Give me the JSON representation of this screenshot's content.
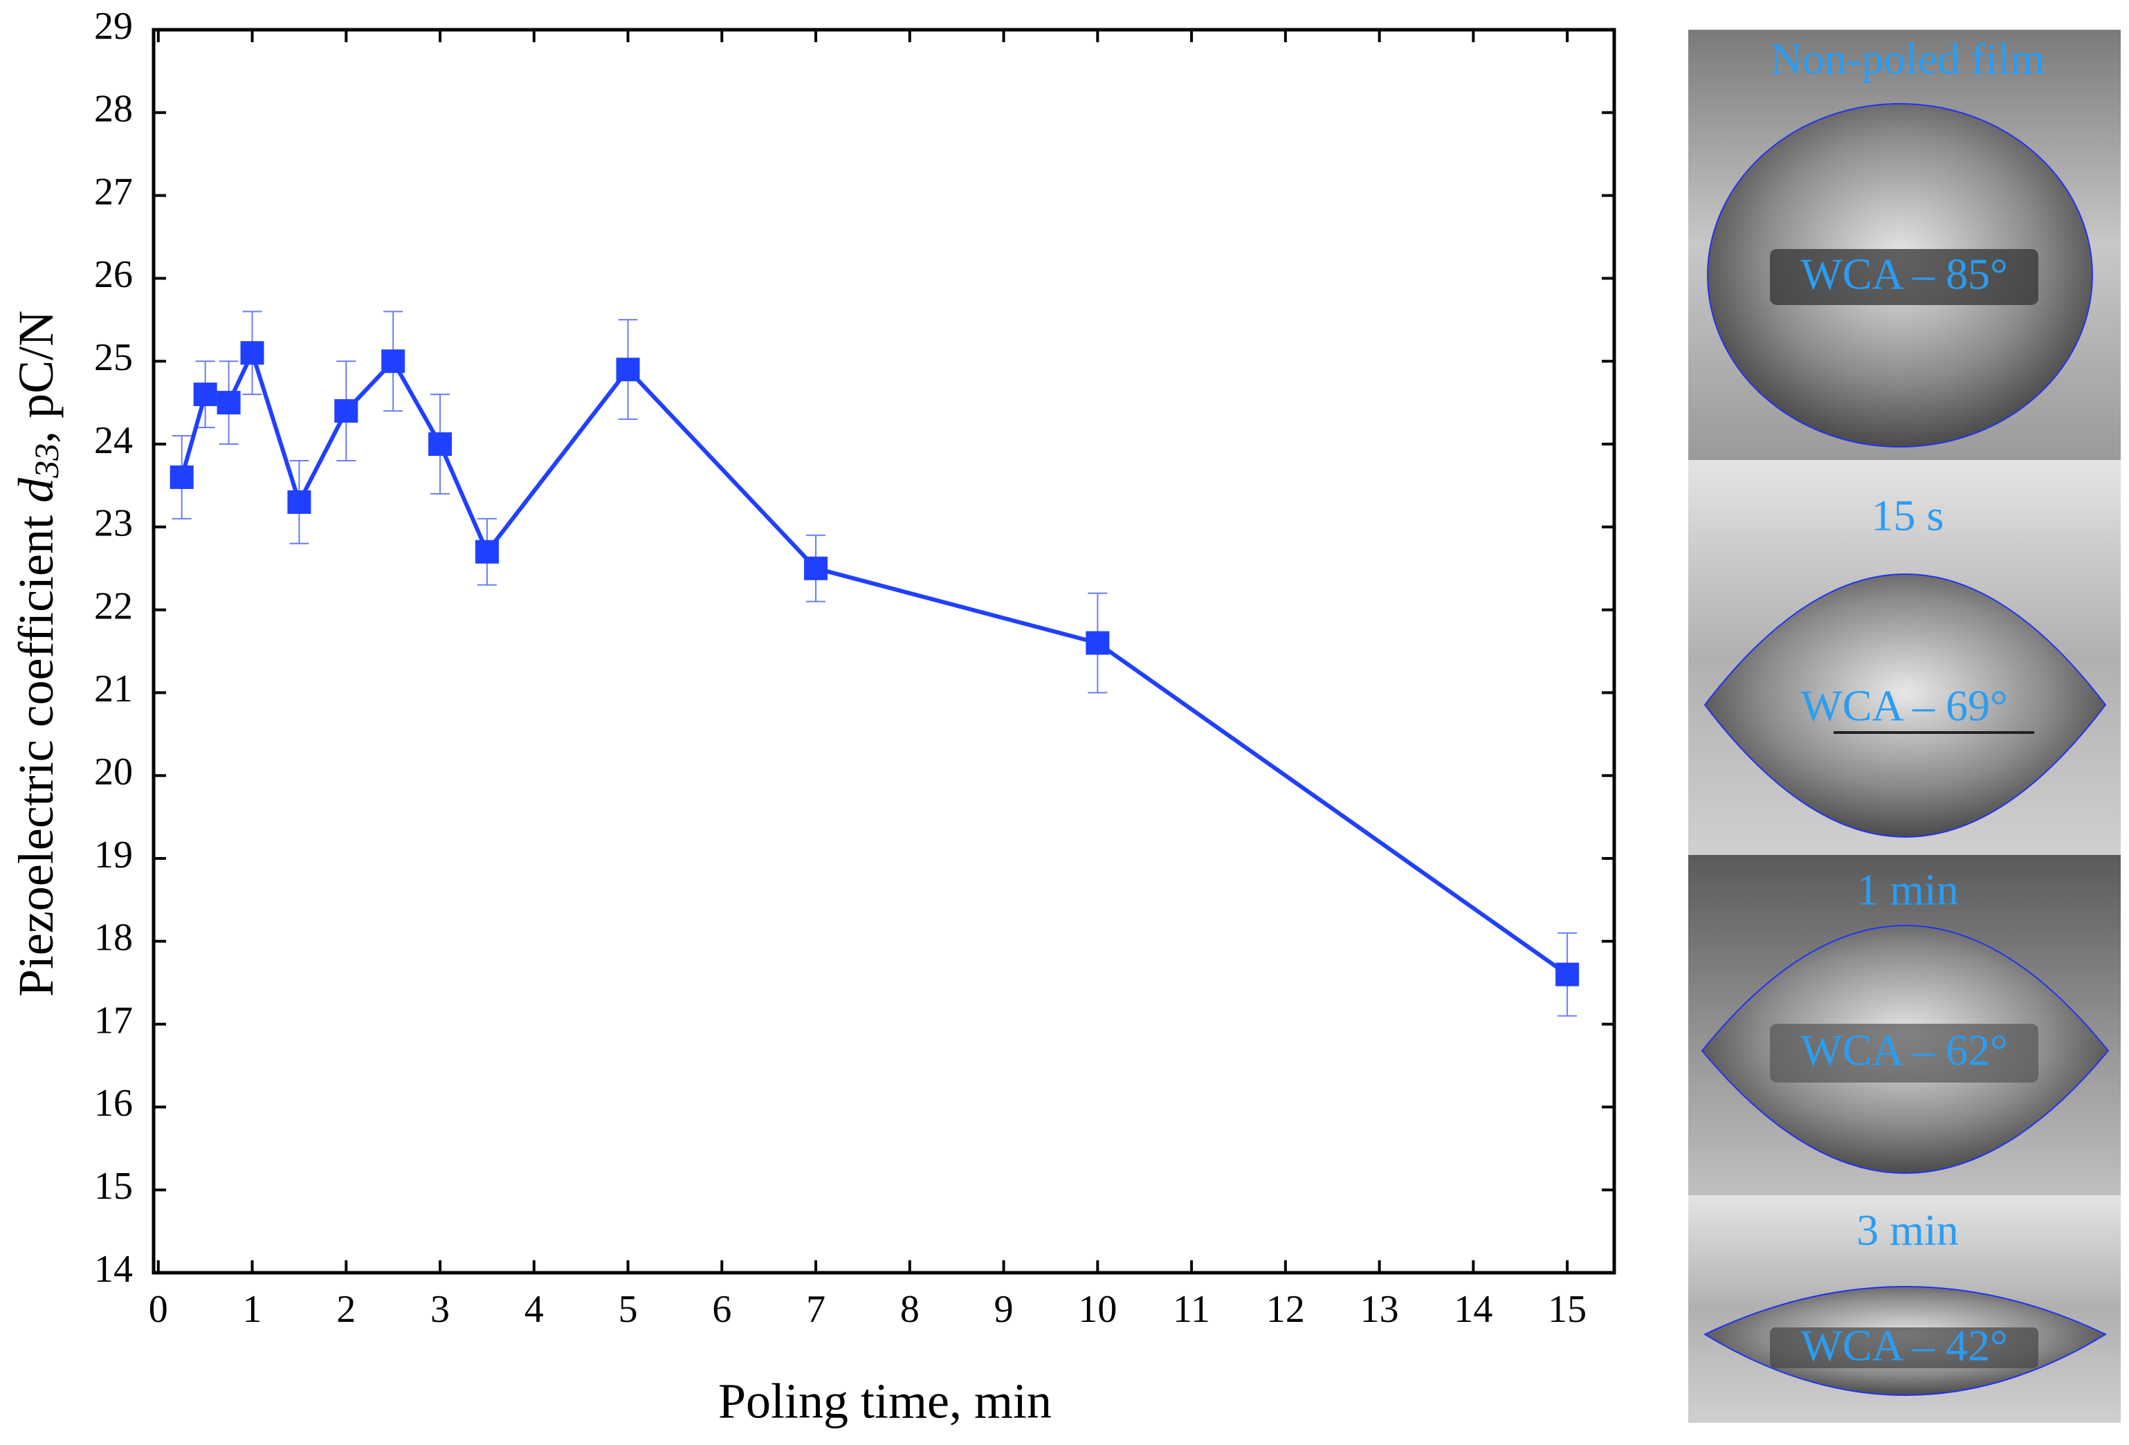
{
  "chart_data": {
    "type": "line",
    "x_label": "Poling time, min",
    "y_label": [
      "Piezoelectric coefficient ",
      "d",
      "33",
      ", pC/N"
    ],
    "x": [
      0.25,
      0.5,
      0.75,
      1,
      1.5,
      2,
      2.5,
      3,
      3.5,
      5,
      7,
      10,
      15
    ],
    "values": [
      23.6,
      24.6,
      24.5,
      25.1,
      23.3,
      24.4,
      25.0,
      24.0,
      22.7,
      24.9,
      22.5,
      21.6,
      17.6
    ],
    "errors": [
      0.5,
      0.4,
      0.5,
      0.5,
      0.5,
      0.6,
      0.6,
      0.6,
      0.4,
      0.6,
      0.4,
      0.6,
      0.5
    ],
    "color": "#2040ff",
    "xlim": [
      -0.05,
      15.5
    ],
    "ylim": [
      14,
      29
    ],
    "xticks": [
      0,
      1,
      2,
      3,
      4,
      5,
      6,
      7,
      8,
      9,
      10,
      11,
      12,
      13,
      14,
      15
    ],
    "yticks": [
      14,
      15,
      16,
      17,
      18,
      19,
      20,
      21,
      22,
      23,
      24,
      25,
      26,
      27,
      28,
      29
    ]
  },
  "images": [
    {
      "title": "Non-poled film",
      "label": "WCA – 85°"
    },
    {
      "title": "15 s",
      "label": "WCA – 69°"
    },
    {
      "title": "1 min",
      "label": "WCA – 62°"
    },
    {
      "title": "3 min",
      "label": "WCA – 42°"
    }
  ]
}
